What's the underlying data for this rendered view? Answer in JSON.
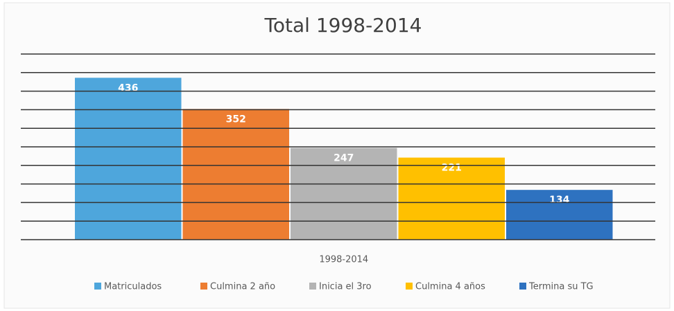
{
  "chart_data": {
    "type": "bar",
    "title": "Total 1998-2014",
    "categories": [
      "1998-2014"
    ],
    "series": [
      {
        "name": "Matriculados",
        "color": "#4ea6dc",
        "values": [
          436
        ]
      },
      {
        "name": "Culmina 2 año",
        "color": "#ed7d31",
        "values": [
          352
        ]
      },
      {
        "name": "Inicia el 3ro",
        "color": "#b4b4b4",
        "values": [
          247
        ]
      },
      {
        "name": "Culmina 4 años",
        "color": "#ffc000",
        "values": [
          221
        ]
      },
      {
        "name": "Termina su TG",
        "color": "#2e72c0",
        "values": [
          134
        ]
      }
    ],
    "ylim": [
      0,
      500
    ],
    "yticks": [
      0,
      50,
      100,
      150,
      200,
      250,
      300,
      350,
      400,
      450,
      500
    ],
    "grid": true,
    "legend": "bottom"
  }
}
